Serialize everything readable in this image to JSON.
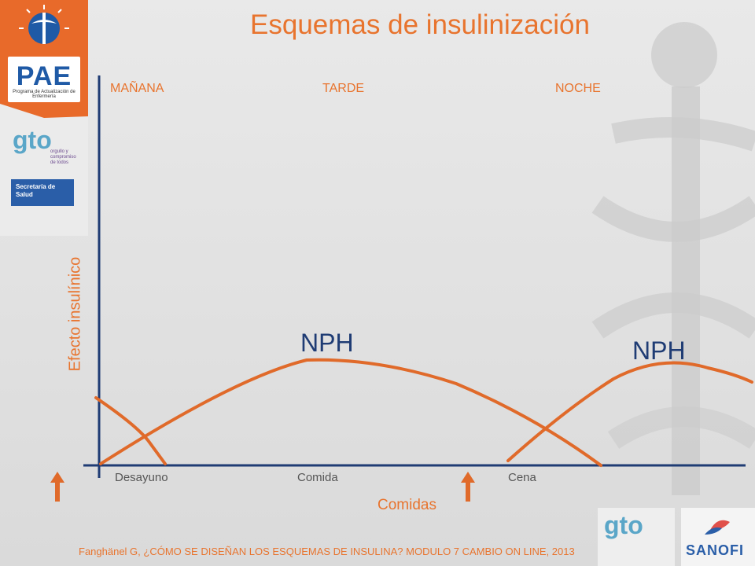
{
  "slide": {
    "title": "Esquemas de insulinización",
    "periods": [
      "MAÑANA",
      "TARDE",
      "NOCHE"
    ],
    "meals": [
      "Desayuno",
      "Comida",
      "Cena"
    ],
    "ylabel": "Efecto insulínico",
    "xlabel": "Comidas",
    "curve_labels": [
      "NPH",
      "NPH"
    ],
    "citation": "Fanghänel G, ¿CÓMO SE DISEÑAN LOS ESQUEMAS DE INSULINA? MODULO 7 CAMBIO ON LINE, 2013"
  },
  "logos": {
    "pae": "PAE",
    "pae_subtitle": "Programa de Actualización de Enfermería",
    "gto": "gto",
    "gto_tagline": "orgullo y compromiso de todos",
    "secretaria": "Secretaría de Salud",
    "sanofi": "SANOFI"
  },
  "colors": {
    "accent": "#e8742e",
    "axis": "#1f3c74",
    "curve": "#e06a2a",
    "meal_arrow": "#e06a2a",
    "label_dark": "#1f3c74"
  }
}
